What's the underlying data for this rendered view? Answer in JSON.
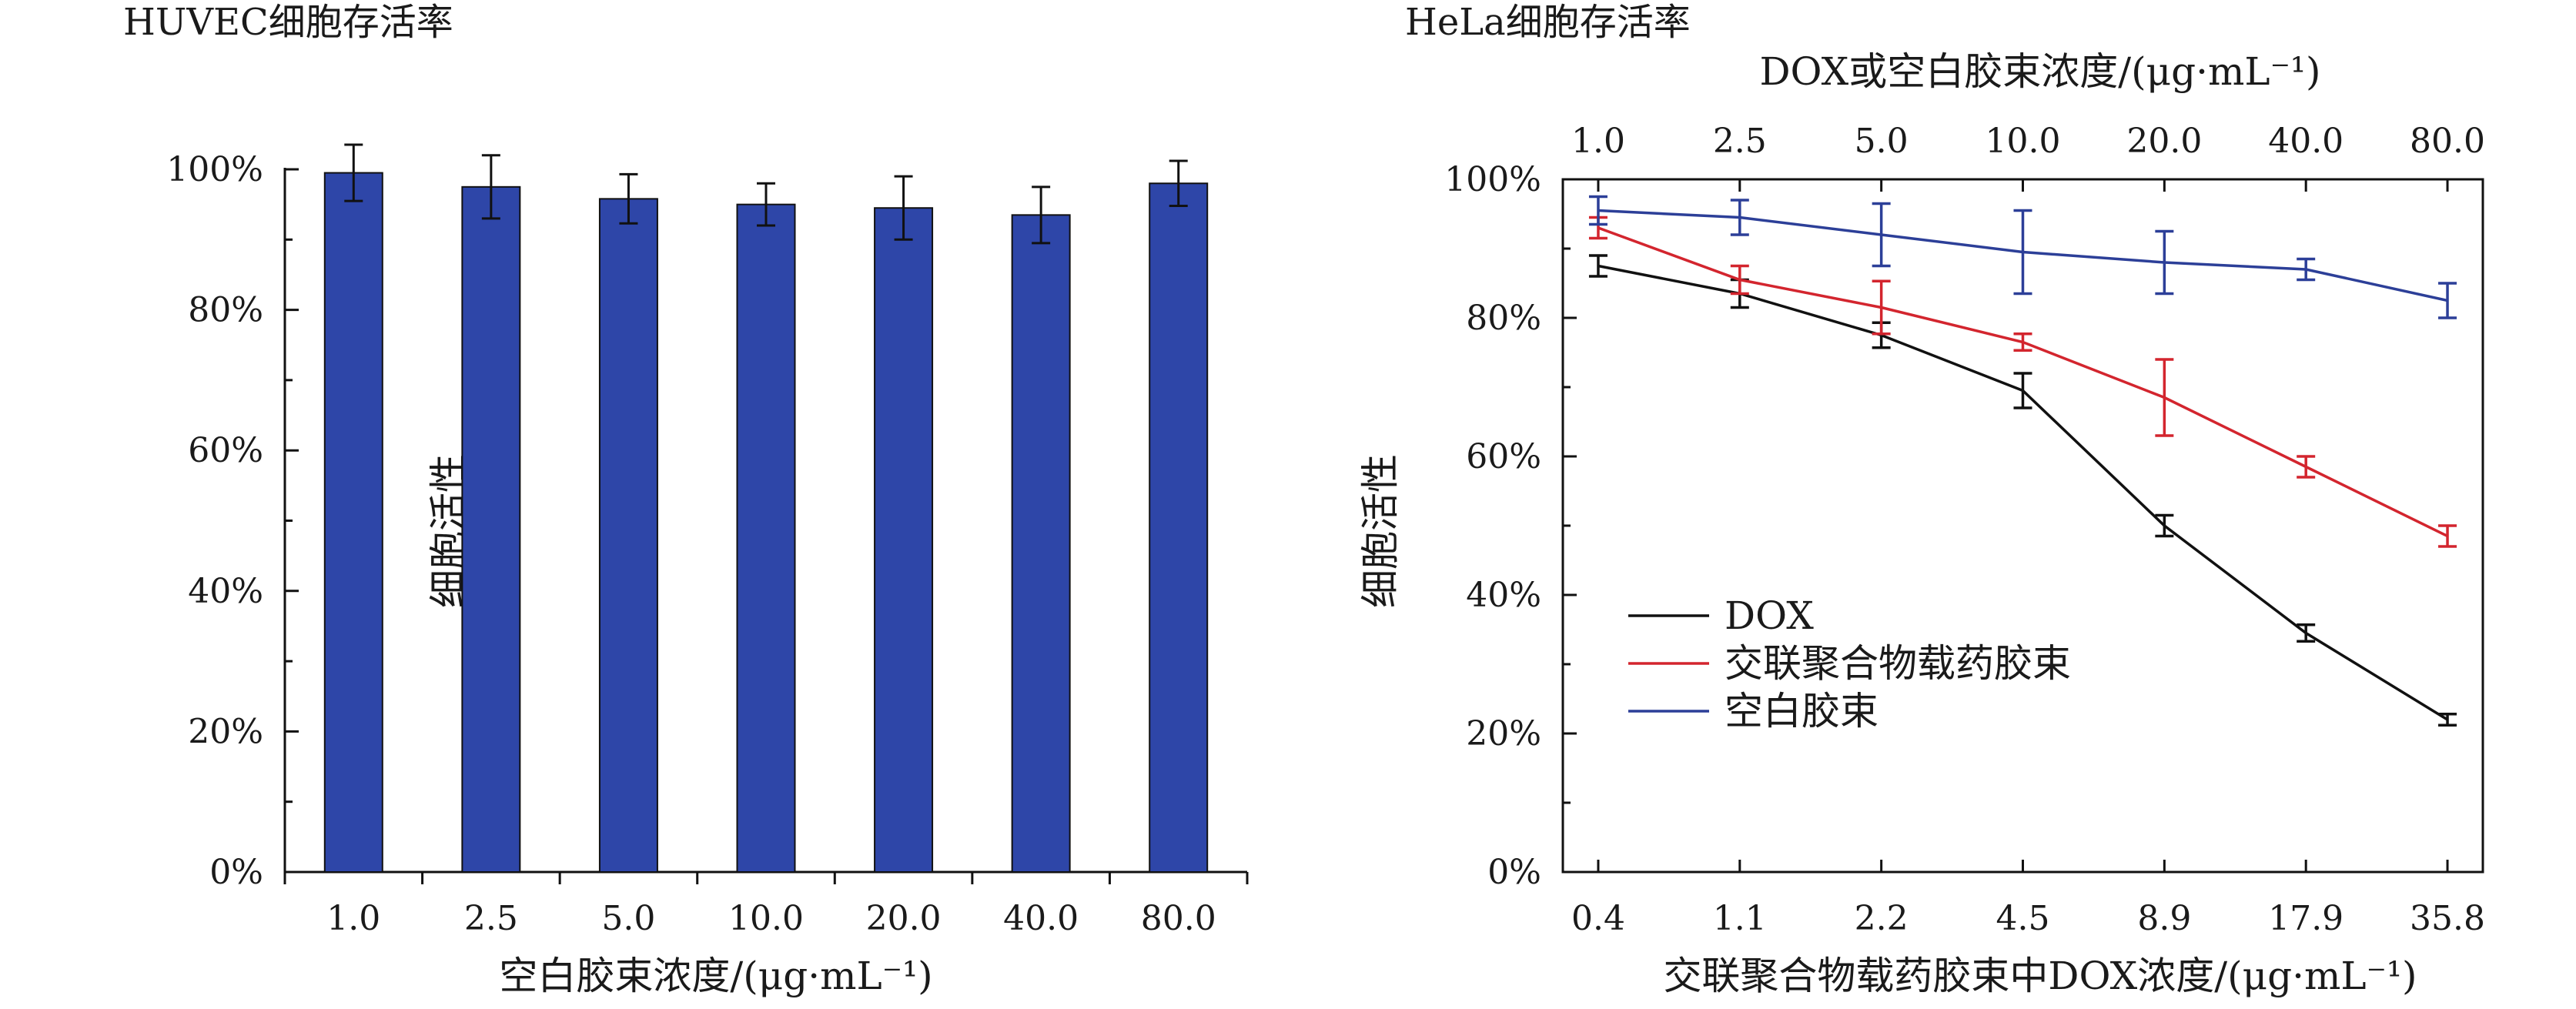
{
  "chart_data": [
    {
      "type": "bar",
      "title": "HUVEC细胞存活率",
      "xlabel": "空白胶束浓度/(μg·mL⁻¹)",
      "ylabel": "细胞活性",
      "categories": [
        "1.0",
        "2.5",
        "5.0",
        "10.0",
        "20.0",
        "40.0",
        "80.0"
      ],
      "values": [
        99.5,
        97.5,
        95.8,
        95.0,
        94.5,
        93.5,
        98.0
      ],
      "errors": [
        4.0,
        4.5,
        3.5,
        3.0,
        4.5,
        4.0,
        3.2
      ],
      "ylim": [
        0,
        100
      ],
      "yticks": [
        "0%",
        "20%",
        "40%",
        "60%",
        "80%",
        "100%"
      ],
      "grid": false,
      "colors": {
        "bar": "#2e46a8"
      }
    },
    {
      "type": "line",
      "title": "HeLa细胞存活率",
      "xlabel": "交联聚合物载药胶束中DOX浓度/(μg·mL⁻¹)",
      "x2label": "DOX或空白胶束浓度/(μg·mL⁻¹)",
      "ylabel": "细胞活性",
      "categories": [
        "0.4",
        "1.1",
        "2.2",
        "4.5",
        "8.9",
        "17.9",
        "35.8"
      ],
      "top_categories": [
        "1.0",
        "2.5",
        "5.0",
        "10.0",
        "20.0",
        "40.0",
        "80.0"
      ],
      "ylim": [
        0,
        100
      ],
      "yticks": [
        "0%",
        "20%",
        "40%",
        "60%",
        "80%",
        "100%"
      ],
      "grid": false,
      "legend_position": "bottom-left",
      "series": [
        {
          "name": "DOX",
          "color": "#111111",
          "values": [
            87.5,
            83.5,
            77.5,
            69.5,
            50.0,
            34.5,
            22.0
          ],
          "errors": [
            1.5,
            2.0,
            1.8,
            2.5,
            1.5,
            1.2,
            0.8
          ]
        },
        {
          "name": "交联聚合物载药胶束",
          "color": "#d3252e",
          "values": [
            93.0,
            85.5,
            81.5,
            76.5,
            68.5,
            58.5,
            48.5
          ],
          "errors": [
            1.5,
            2.0,
            3.8,
            1.2,
            5.5,
            1.5,
            1.5
          ]
        },
        {
          "name": "空白胶束",
          "color": "#2c3f98",
          "values": [
            95.5,
            94.5,
            92.0,
            89.5,
            88.0,
            87.0,
            82.5
          ],
          "errors": [
            2.0,
            2.5,
            4.5,
            6.0,
            4.5,
            1.5,
            2.5
          ]
        }
      ]
    }
  ]
}
